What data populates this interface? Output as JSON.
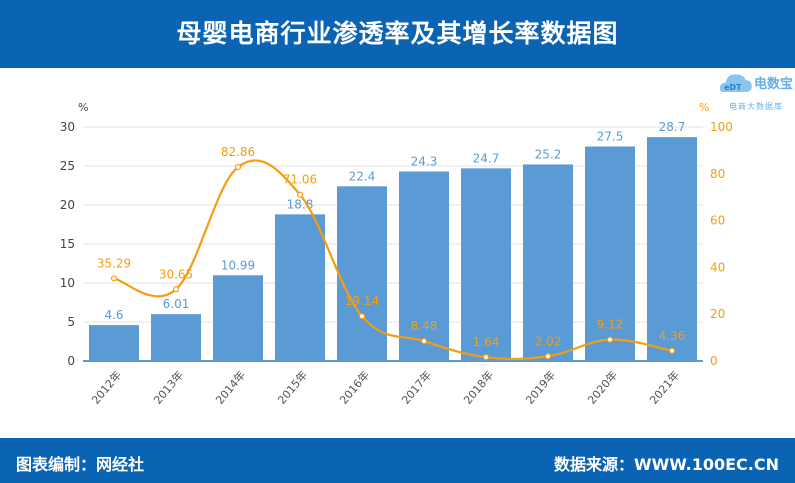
{
  "header": {
    "title": "母婴电商行业渗透率及其增长率数据图"
  },
  "footer": {
    "left": "图表编制：网经社",
    "right": "数据来源：WWW.100EC.CN"
  },
  "logo": {
    "text": "电数宝",
    "sub": "电商大数据库",
    "mark": "ebrt"
  },
  "chart_data": {
    "type": "bar+line",
    "categories": [
      "2012年",
      "2013年",
      "2014年",
      "2015年",
      "2016年",
      "2017年",
      "2018年",
      "2019年",
      "2020年",
      "2021年"
    ],
    "series": [
      {
        "type": "bar",
        "axis": "left",
        "color": "#5b9bd5",
        "values": [
          4.6,
          6.01,
          10.99,
          18.8,
          22.4,
          24.3,
          24.7,
          25.2,
          27.5,
          28.7
        ]
      },
      {
        "type": "line",
        "axis": "right",
        "color": "#f59d12",
        "smooth": true,
        "values": [
          35.29,
          30.65,
          82.86,
          71.06,
          19.14,
          8.48,
          1.64,
          2.02,
          9.12,
          4.36
        ]
      }
    ],
    "left_axis": {
      "unit": "%",
      "range": [
        0,
        30
      ],
      "ticks": [
        0,
        5,
        10,
        15,
        20,
        25,
        30
      ]
    },
    "right_axis": {
      "unit": "%",
      "range": [
        0,
        100
      ],
      "ticks": [
        0,
        20,
        40,
        60,
        80,
        100
      ],
      "color": "#f59d12"
    },
    "grid": true
  }
}
